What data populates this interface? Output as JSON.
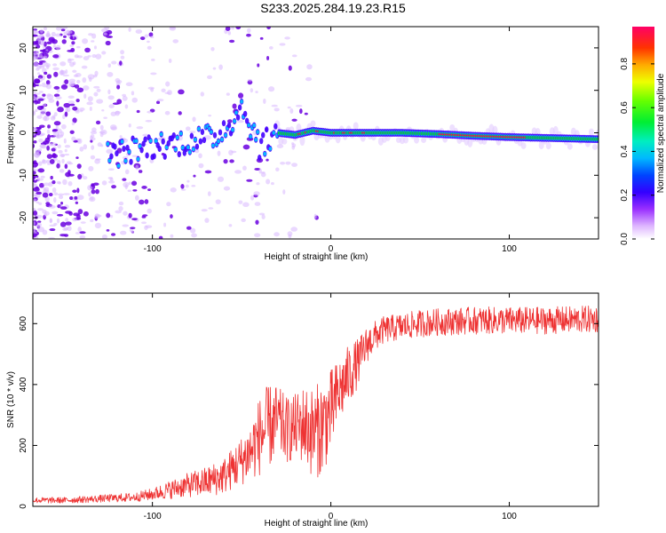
{
  "title": "S233.2025.284.19.23.R15",
  "colors": {
    "snr_line": "#ee3333",
    "spectrum_bright": "#ff2222",
    "spectrum_core": "#00dd33",
    "spectrum_edge": "#4400ff",
    "noise": "#6a00e0"
  },
  "chart_data": [
    {
      "type": "heatmap",
      "name": "spectrogram",
      "xlabel": "Height of straight line (km)",
      "ylabel": "Frequency (Hz)",
      "xlim": [
        -167,
        150
      ],
      "ylim": [
        -25,
        25
      ],
      "x_ticks": [
        -100,
        0,
        100
      ],
      "y_ticks": [
        -20,
        -10,
        0,
        10,
        20
      ],
      "grid": false,
      "trace": {
        "x": [
          -120,
          -100,
          -80,
          -65,
          -55,
          -50,
          -45,
          -40,
          -35,
          -30,
          -20,
          -15,
          -10,
          0,
          10,
          20,
          40,
          60,
          80,
          100,
          120,
          150
        ],
        "y": [
          -5,
          -3,
          -2,
          -1,
          3,
          6,
          2,
          -3,
          -2,
          0,
          -0.5,
          0,
          0.5,
          0,
          0,
          0,
          0,
          -0.3,
          -0.7,
          -1,
          -1.2,
          -1.5
        ]
      },
      "colorbar": {
        "label": "Normalized spectral amplitude",
        "range": [
          0,
          0.97
        ],
        "ticks": [
          0.0,
          0.2,
          0.4,
          0.6,
          0.8
        ],
        "tick_labels": [
          "0.0",
          "0.2",
          "0.4",
          "0.6",
          "0.8"
        ]
      }
    },
    {
      "type": "line",
      "name": "snr",
      "xlabel": "Height of straight line (km)",
      "ylabel": "SNR (10 * v/v)",
      "xlim": [
        -167,
        150
      ],
      "ylim": [
        0,
        700
      ],
      "x_ticks": [
        -100,
        0,
        100
      ],
      "y_ticks": [
        0,
        200,
        400,
        600
      ],
      "grid": false,
      "series": [
        {
          "name": "SNR",
          "x": [
            -167,
            -150,
            -130,
            -110,
            -100,
            -90,
            -80,
            -70,
            -60,
            -50,
            -45,
            -40,
            -35,
            -30,
            -25,
            -20,
            -15,
            -10,
            -5,
            0,
            5,
            10,
            15,
            20,
            25,
            30,
            40,
            50,
            60,
            80,
            100,
            120,
            150
          ],
          "y": [
            20,
            20,
            25,
            30,
            40,
            55,
            70,
            80,
            100,
            150,
            180,
            230,
            260,
            280,
            250,
            260,
            270,
            240,
            260,
            310,
            380,
            430,
            470,
            530,
            560,
            580,
            590,
            600,
            605,
            610,
            610,
            610,
            615
          ],
          "spread": [
            10,
            10,
            12,
            15,
            20,
            30,
            40,
            50,
            60,
            80,
            100,
            130,
            140,
            120,
            110,
            110,
            130,
            150,
            160,
            140,
            110,
            100,
            80,
            60,
            50,
            45,
            45,
            45,
            45,
            45,
            45,
            45,
            45
          ]
        }
      ]
    }
  ]
}
